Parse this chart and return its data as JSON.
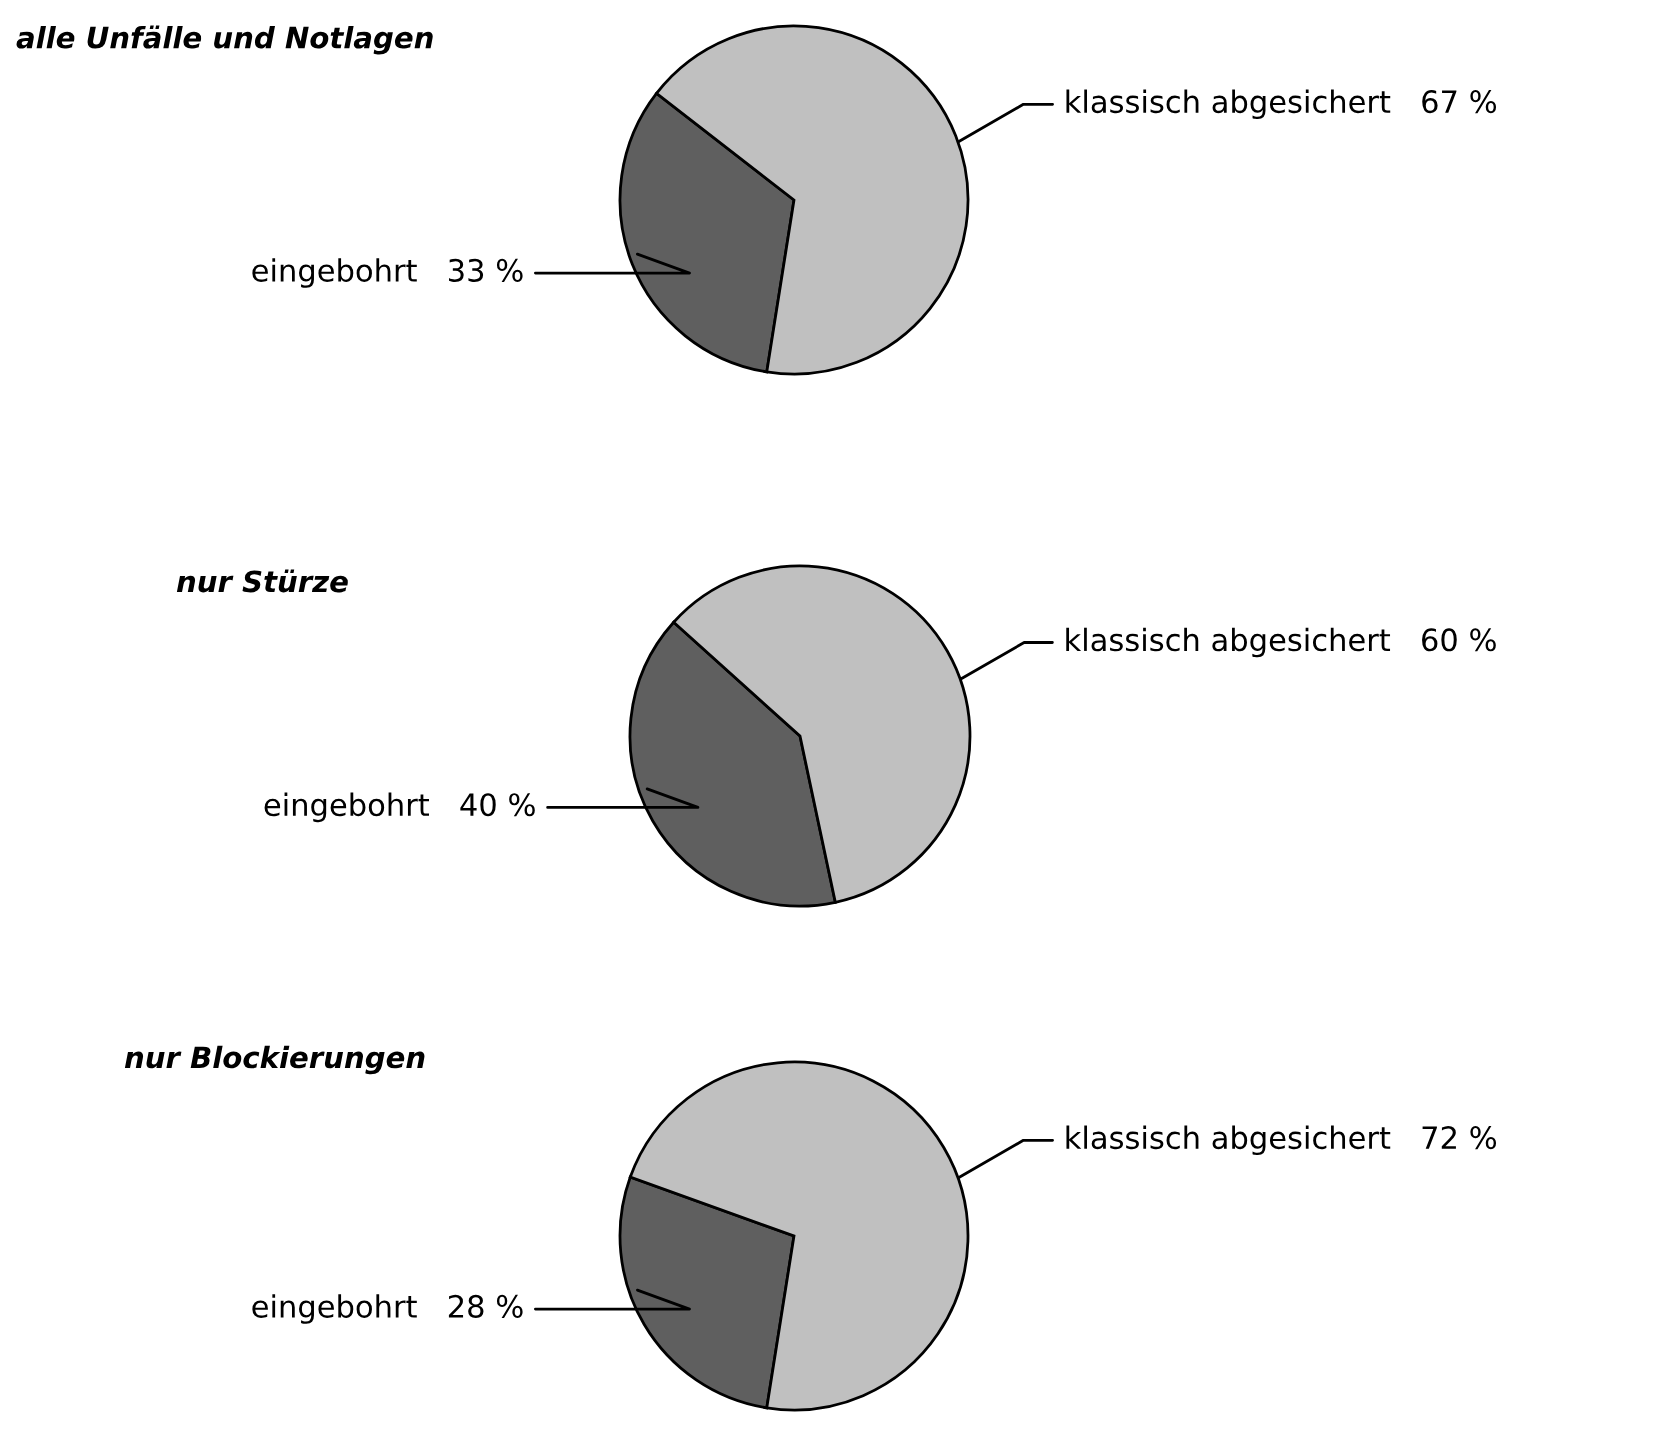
{
  "chart_data": [
    {
      "type": "pie",
      "title": "alle Unfälle und Notlagen",
      "categories": [
        "eingebohrt",
        "klassisch abgesichert"
      ],
      "values": [
        33,
        67
      ],
      "colors": [
        "#5f5f5f",
        "#c0c0c0"
      ],
      "value_labels": [
        "33 %",
        "67 %"
      ]
    },
    {
      "type": "pie",
      "title": "nur Stürze",
      "categories": [
        "eingebohrt",
        "klassisch abgesichert"
      ],
      "values": [
        40,
        60
      ],
      "colors": [
        "#5f5f5f",
        "#c0c0c0"
      ],
      "value_labels": [
        "40 %",
        "60 %"
      ]
    },
    {
      "type": "pie",
      "title": "nur Blockierungen",
      "categories": [
        "eingebohrt",
        "klassisch abgesichert"
      ],
      "values": [
        28,
        72
      ],
      "colors": [
        "#5f5f5f",
        "#c0c0c0"
      ],
      "value_labels": [
        "28 %",
        "72 %"
      ]
    }
  ]
}
